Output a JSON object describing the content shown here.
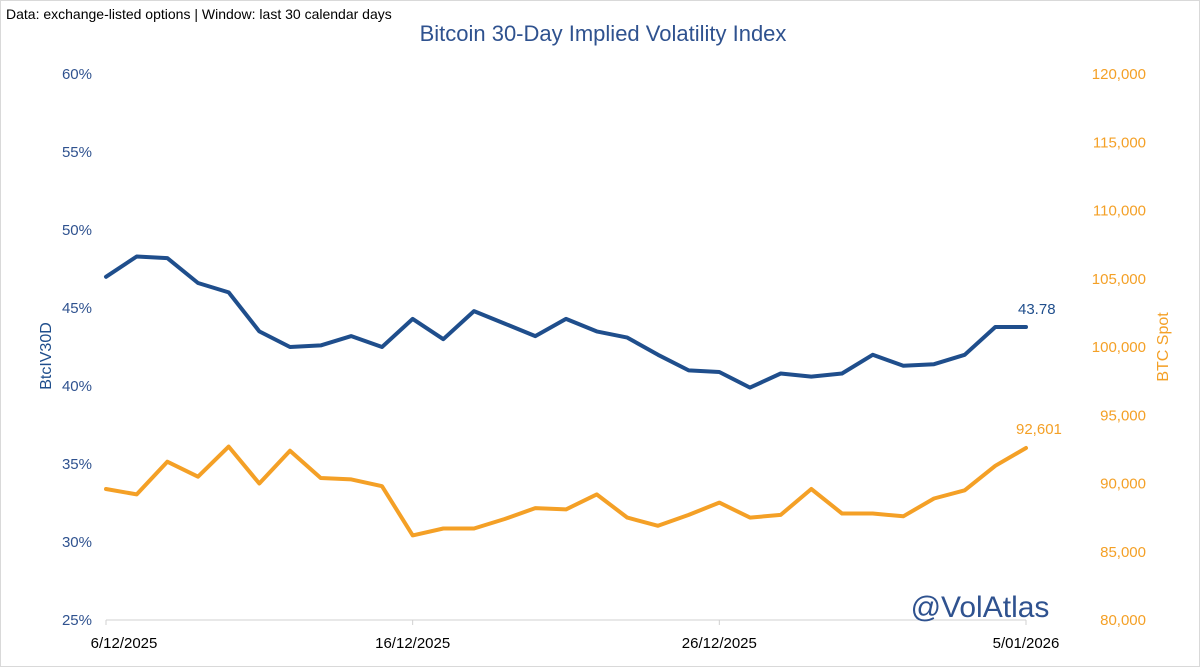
{
  "source_note": "Data: exchange-listed options | Window: last 30 calendar days",
  "watermark": "@VolAtlas",
  "colors": {
    "iv": "#1f4e8c",
    "btc": "#f4a026",
    "title": "#2f528f"
  },
  "chart_data": {
    "type": "line",
    "title": "Bitcoin 30-Day Implied Volatility Index",
    "xlabel": "",
    "x": [
      "6/12/2025",
      "7/12/2025",
      "8/12/2025",
      "9/12/2025",
      "10/12/2025",
      "11/12/2025",
      "12/12/2025",
      "13/12/2025",
      "14/12/2025",
      "15/12/2025",
      "16/12/2025",
      "17/12/2025",
      "18/12/2025",
      "19/12/2025",
      "20/12/2025",
      "21/12/2025",
      "22/12/2025",
      "23/12/2025",
      "24/12/2025",
      "25/12/2025",
      "26/12/2025",
      "27/12/2025",
      "28/12/2025",
      "29/12/2025",
      "30/12/2025",
      "31/12/2025",
      "1/01/2026",
      "2/01/2026",
      "3/01/2026",
      "4/01/2026",
      "5/01/2026"
    ],
    "x_ticks": [
      "6/12/2025",
      "16/12/2025",
      "26/12/2025",
      "5/01/2026"
    ],
    "x_tick_index": [
      0,
      10,
      20,
      30
    ],
    "series": [
      {
        "name": "BtcIV30D",
        "axis": "left",
        "values": [
          47.0,
          48.3,
          48.2,
          46.6,
          46.0,
          43.5,
          42.5,
          42.6,
          43.2,
          42.5,
          44.3,
          43.0,
          44.8,
          44.0,
          43.2,
          44.3,
          43.5,
          43.1,
          42.0,
          41.0,
          40.9,
          39.9,
          40.8,
          40.6,
          40.8,
          42.0,
          41.3,
          41.4,
          42.0,
          43.78,
          43.78
        ],
        "end_label": "43.78"
      },
      {
        "name": "BTC Spot",
        "axis": "right",
        "values": [
          89600,
          89200,
          91600,
          90500,
          92700,
          90000,
          92400,
          90400,
          90300,
          89800,
          86200,
          86700,
          86700,
          87400,
          88200,
          88100,
          89200,
          87500,
          86900,
          87700,
          88600,
          87500,
          87700,
          89600,
          87800,
          87800,
          87600,
          88900,
          89500,
          91300,
          92601
        ],
        "end_label": "92,601"
      }
    ],
    "left_axis": {
      "label": "BtcIV30D",
      "ylim": [
        25,
        60
      ],
      "ticks": [
        "25%",
        "30%",
        "35%",
        "40%",
        "45%",
        "50%",
        "55%",
        "60%"
      ],
      "tick_values": [
        25,
        30,
        35,
        40,
        45,
        50,
        55,
        60
      ]
    },
    "right_axis": {
      "label": "BTC Spot",
      "ylim": [
        80000,
        120000
      ],
      "ticks": [
        "80,000",
        "85,000",
        "90,000",
        "95,000",
        "100,000",
        "105,000",
        "110,000",
        "115,000",
        "120,000"
      ],
      "tick_values": [
        80000,
        85000,
        90000,
        95000,
        100000,
        105000,
        110000,
        115000,
        120000
      ]
    },
    "grid": false,
    "legend": "none"
  }
}
